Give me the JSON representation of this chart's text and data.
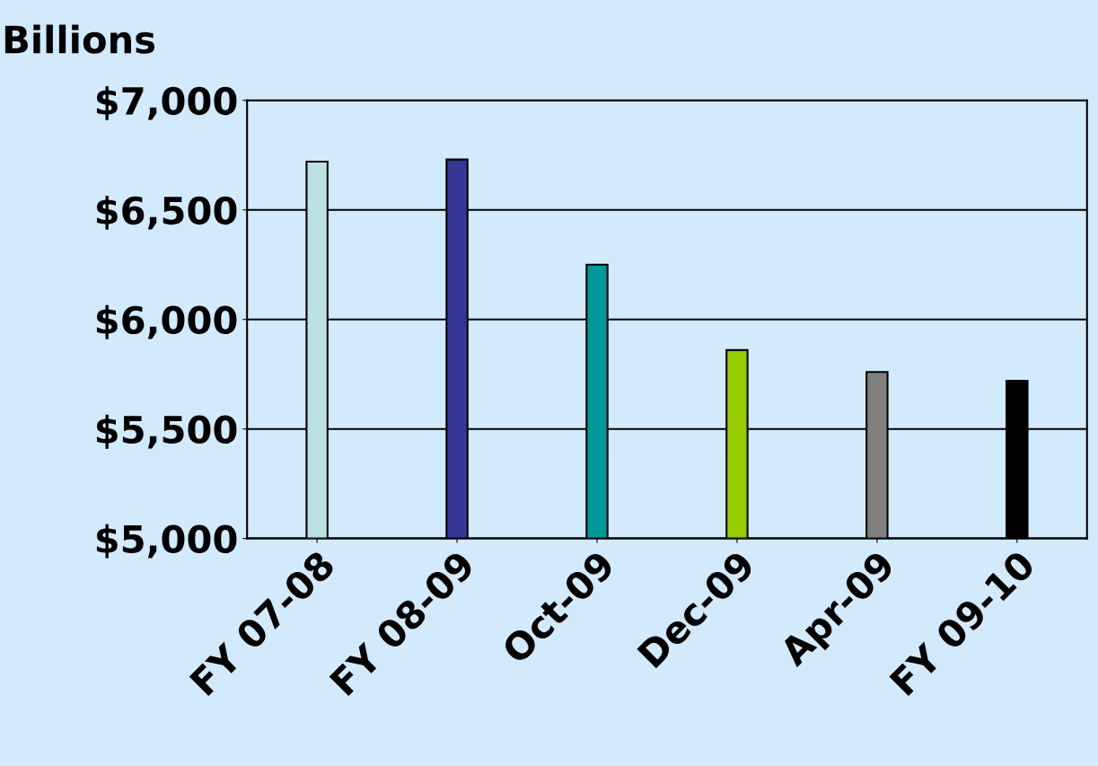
{
  "chart_data": {
    "type": "bar",
    "ylabel": "Billions",
    "categories": [
      "FY 07-08",
      "FY 08-09",
      "Oct-09",
      "Dec-09",
      "Apr-09",
      "FY 09-10"
    ],
    "values": [
      6720,
      6730,
      6250,
      5860,
      5760,
      5720
    ],
    "colors": [
      "#bde0e3",
      "#363696",
      "#009999",
      "#99cc00",
      "#808080",
      "#000000"
    ],
    "ylim": [
      5000,
      7000
    ],
    "yticks": [
      {
        "value": 5000,
        "label": "$5,000"
      },
      {
        "value": 5500,
        "label": "$5,500"
      },
      {
        "value": 6000,
        "label": "$6,000"
      },
      {
        "value": 6500,
        "label": "$6,500"
      },
      {
        "value": 7000,
        "label": "$7,000"
      }
    ],
    "grid": "y",
    "legend": false
  }
}
